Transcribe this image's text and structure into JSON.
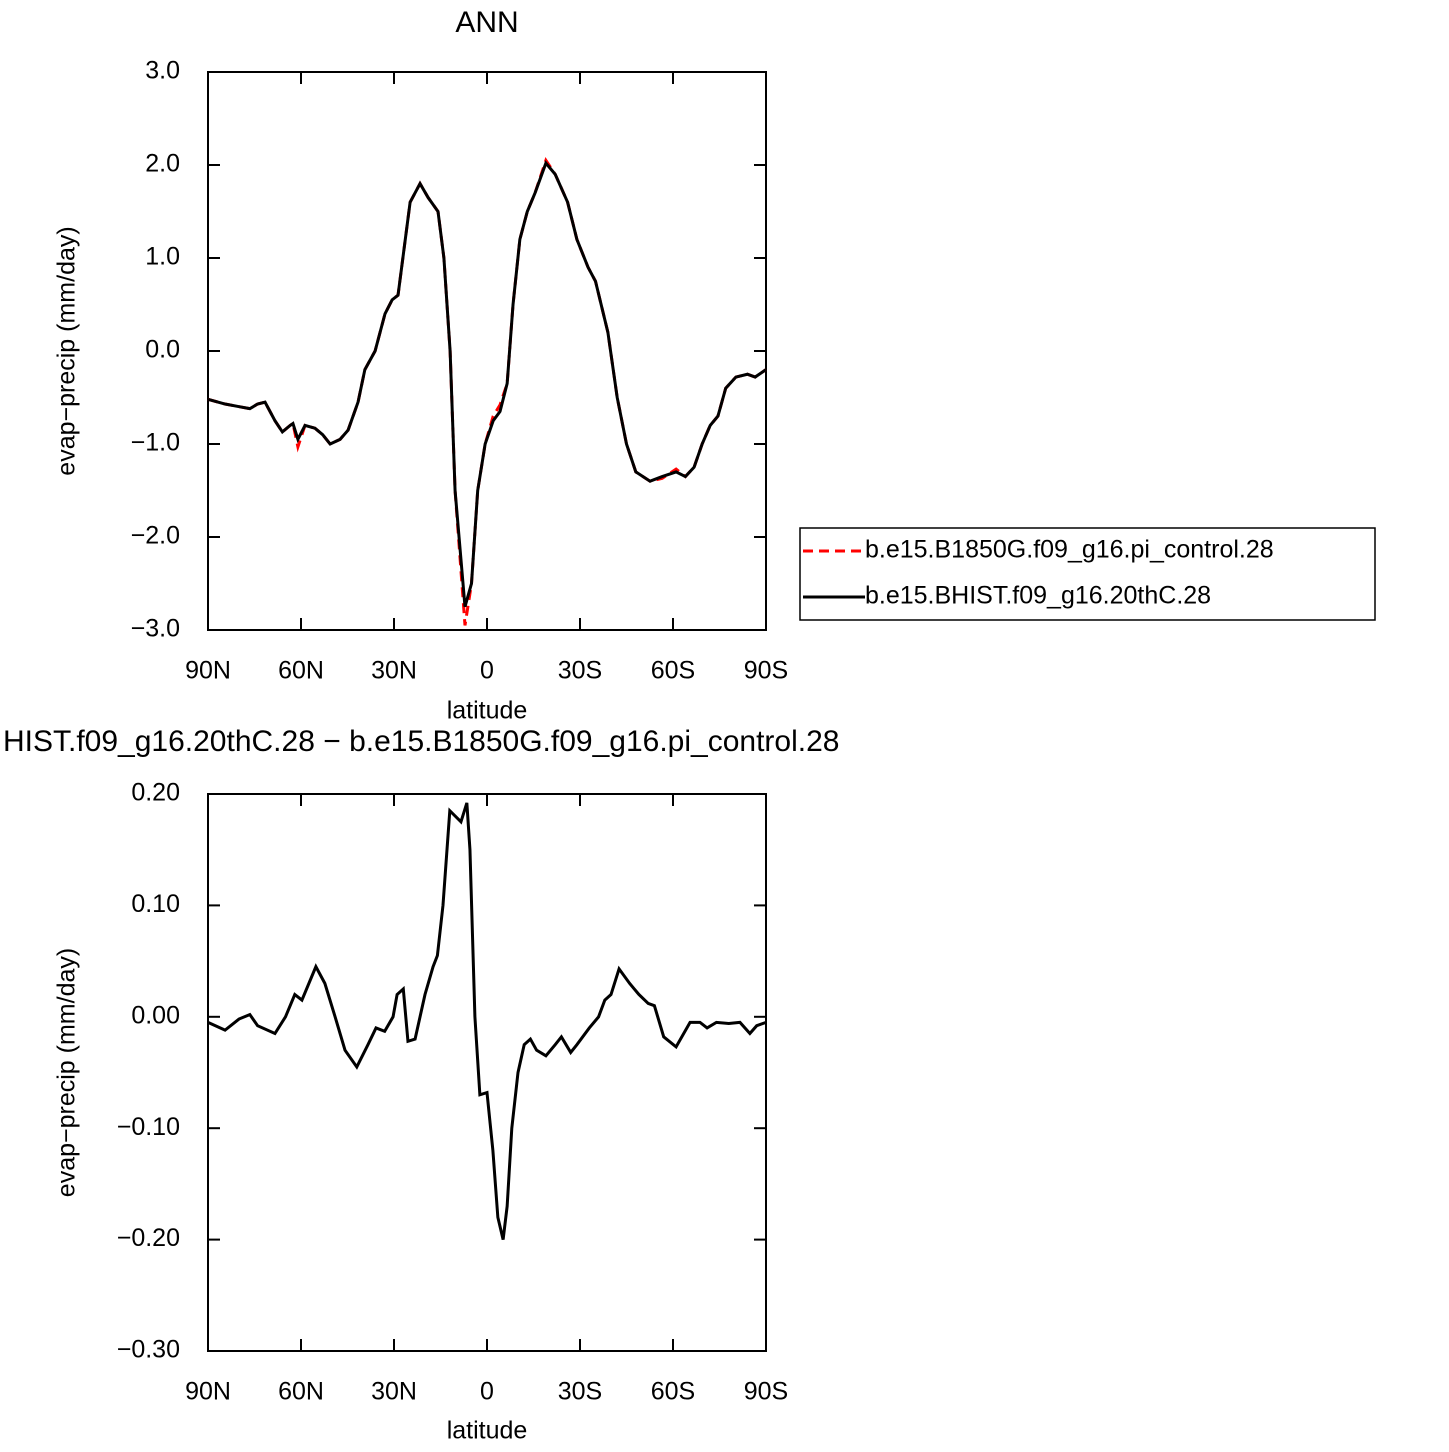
{
  "chart_data": [
    {
      "type": "line",
      "title": "ANN",
      "x": [
        90,
        84.5,
        79.7,
        76.5,
        74,
        71.6,
        68.4,
        66,
        63.5,
        62.6,
        61,
        58.7,
        55.5,
        53,
        50.6,
        47.4,
        44.8,
        41.6,
        39.4,
        36.1,
        32.9,
        30.6,
        28.7,
        24.8,
        21.6,
        19,
        15.8,
        13.9,
        11.9,
        10.3,
        7.1,
        5,
        3,
        0.6,
        -2,
        -4.2,
        -6.5,
        -8.4,
        -10.6,
        -13,
        -15.5,
        -19,
        -22,
        -26,
        -29,
        -32.6,
        -35,
        -39,
        -42,
        -45,
        -48,
        -52.6,
        -56.5,
        -61,
        -64,
        -66.8,
        -69.4,
        -72,
        -74.5,
        -77,
        -80.3,
        -84,
        -86.5,
        -90
      ],
      "series": [
        {
          "name": "b.e15.B1850G.f09_g16.pi_control.28",
          "color": "#ff0000",
          "line_style": "dashed",
          "values": [
            -0.52,
            -0.57,
            -0.6,
            -0.62,
            -0.57,
            -0.55,
            -0.75,
            -0.87,
            -0.8,
            -0.78,
            -1.03,
            -0.8,
            -0.83,
            -0.9,
            -1.0,
            -0.95,
            -0.85,
            -0.55,
            -0.2,
            0.0,
            0.4,
            0.55,
            0.6,
            1.6,
            1.8,
            1.65,
            1.5,
            1.0,
            0.0,
            -1.5,
            -2.95,
            -2.5,
            -1.5,
            -1.0,
            -0.7,
            -0.58,
            -0.35,
            0.5,
            1.2,
            1.5,
            1.7,
            2.05,
            1.9,
            1.6,
            1.2,
            0.9,
            0.75,
            0.2,
            -0.5,
            -1.0,
            -1.3,
            -1.4,
            -1.37,
            -1.27,
            -1.35,
            -1.25,
            -1.0,
            -0.8,
            -0.7,
            -0.4,
            -0.28,
            -0.25,
            -0.28,
            -0.2
          ]
        },
        {
          "name": "b.e15.BHIST.f09_g16.20thC.28",
          "color": "#000000",
          "line_style": "solid",
          "values": [
            -0.52,
            -0.57,
            -0.6,
            -0.62,
            -0.57,
            -0.55,
            -0.75,
            -0.87,
            -0.8,
            -0.78,
            -0.95,
            -0.8,
            -0.83,
            -0.9,
            -1.0,
            -0.95,
            -0.85,
            -0.55,
            -0.2,
            0.0,
            0.4,
            0.55,
            0.6,
            1.6,
            1.8,
            1.65,
            1.5,
            1.0,
            0.0,
            -1.5,
            -2.75,
            -2.5,
            -1.5,
            -1.0,
            -0.75,
            -0.65,
            -0.35,
            0.5,
            1.2,
            1.5,
            1.7,
            2.02,
            1.9,
            1.6,
            1.2,
            0.9,
            0.75,
            0.2,
            -0.5,
            -1.0,
            -1.3,
            -1.4,
            -1.35,
            -1.3,
            -1.35,
            -1.25,
            -1.0,
            -0.8,
            -0.7,
            -0.4,
            -0.28,
            -0.25,
            -0.28,
            -0.2
          ]
        }
      ],
      "xlabel": "latitude",
      "ylabel": "evap−precip (mm/day)",
      "xlim": [
        90,
        -90
      ],
      "xticks": [
        {
          "value": 90,
          "label": "90N"
        },
        {
          "value": 60,
          "label": "60N"
        },
        {
          "value": 30,
          "label": "30N"
        },
        0,
        {
          "value": -30,
          "label": "30S"
        },
        {
          "value": -60,
          "label": "60S"
        },
        {
          "value": -90,
          "label": "90S"
        }
      ],
      "ylim": [
        -3,
        3
      ],
      "yticks": [
        {
          "value": 3,
          "label": "3.0"
        },
        {
          "value": 2,
          "label": "2.0"
        },
        {
          "value": 1,
          "label": "1.0"
        },
        {
          "value": 0,
          "label": "0.0"
        },
        {
          "value": -1,
          "label": "−1.0"
        },
        {
          "value": -2,
          "label": "−2.0"
        },
        {
          "value": -3,
          "label": "−3.0"
        }
      ],
      "legend": "right"
    },
    {
      "type": "line",
      "title": "HIST.f09_g16.20thC.28 − b.e15.B1850G.f09_g16.pi_control.28",
      "x": [
        90,
        84.5,
        80,
        76.5,
        74,
        68.4,
        65,
        62,
        59.7,
        55.2,
        52.3,
        49,
        45.8,
        42,
        38.4,
        35.8,
        33,
        30.3,
        29,
        27,
        25.5,
        23.2,
        20,
        17.4,
        16,
        14.2,
        12,
        8.4,
        6.5,
        5.5,
        3.9,
        2.3,
        0,
        -1.9,
        -3.5,
        -5.2,
        -6.5,
        -8,
        -10,
        -12,
        -14,
        -16,
        -19,
        -22,
        -24,
        -27,
        -29,
        -33,
        -36,
        -38,
        -40,
        -42.6,
        -46,
        -49,
        -52,
        -54,
        -57,
        -61,
        -65.5,
        -68.7,
        -71,
        -74,
        -78,
        -81.6,
        -84.8,
        -87,
        -90
      ],
      "values": [
        -0.005,
        -0.012,
        -0.002,
        0.002,
        -0.008,
        -0.015,
        0.0,
        0.02,
        0.015,
        0.045,
        0.03,
        0.0,
        -0.03,
        -0.045,
        -0.025,
        -0.01,
        -0.013,
        0.0,
        0.02,
        0.025,
        -0.022,
        -0.02,
        0.02,
        0.045,
        0.055,
        0.1,
        0.185,
        0.175,
        0.192,
        0.15,
        0.0,
        -0.07,
        -0.068,
        -0.12,
        -0.18,
        -0.2,
        -0.17,
        -0.1,
        -0.05,
        -0.025,
        -0.02,
        -0.03,
        -0.035,
        -0.025,
        -0.018,
        -0.032,
        -0.025,
        -0.01,
        0.0,
        0.015,
        0.02,
        0.043,
        0.03,
        0.02,
        0.012,
        0.01,
        -0.018,
        -0.027,
        -0.005,
        -0.005,
        -0.01,
        -0.005,
        -0.006,
        -0.005,
        -0.015,
        -0.008,
        -0.005
      ],
      "color": "#000000",
      "xlabel": "latitude",
      "ylabel": "evap−precip (mm/day)",
      "xlim": [
        90,
        -90
      ],
      "xticks": [
        {
          "value": 90,
          "label": "90N"
        },
        {
          "value": 60,
          "label": "60N"
        },
        {
          "value": 30,
          "label": "30N"
        },
        0,
        {
          "value": -30,
          "label": "30S"
        },
        {
          "value": -60,
          "label": "60S"
        },
        {
          "value": -90,
          "label": "90S"
        }
      ],
      "ylim": [
        -0.3,
        0.2
      ],
      "yticks": [
        {
          "value": 0.2,
          "label": "0.20"
        },
        {
          "value": 0.1,
          "label": "0.10"
        },
        {
          "value": 0,
          "label": "0.00"
        },
        {
          "value": -0.1,
          "label": "−0.10"
        },
        {
          "value": -0.2,
          "label": "−0.20"
        },
        {
          "value": -0.3,
          "label": "−0.30"
        }
      ]
    }
  ]
}
